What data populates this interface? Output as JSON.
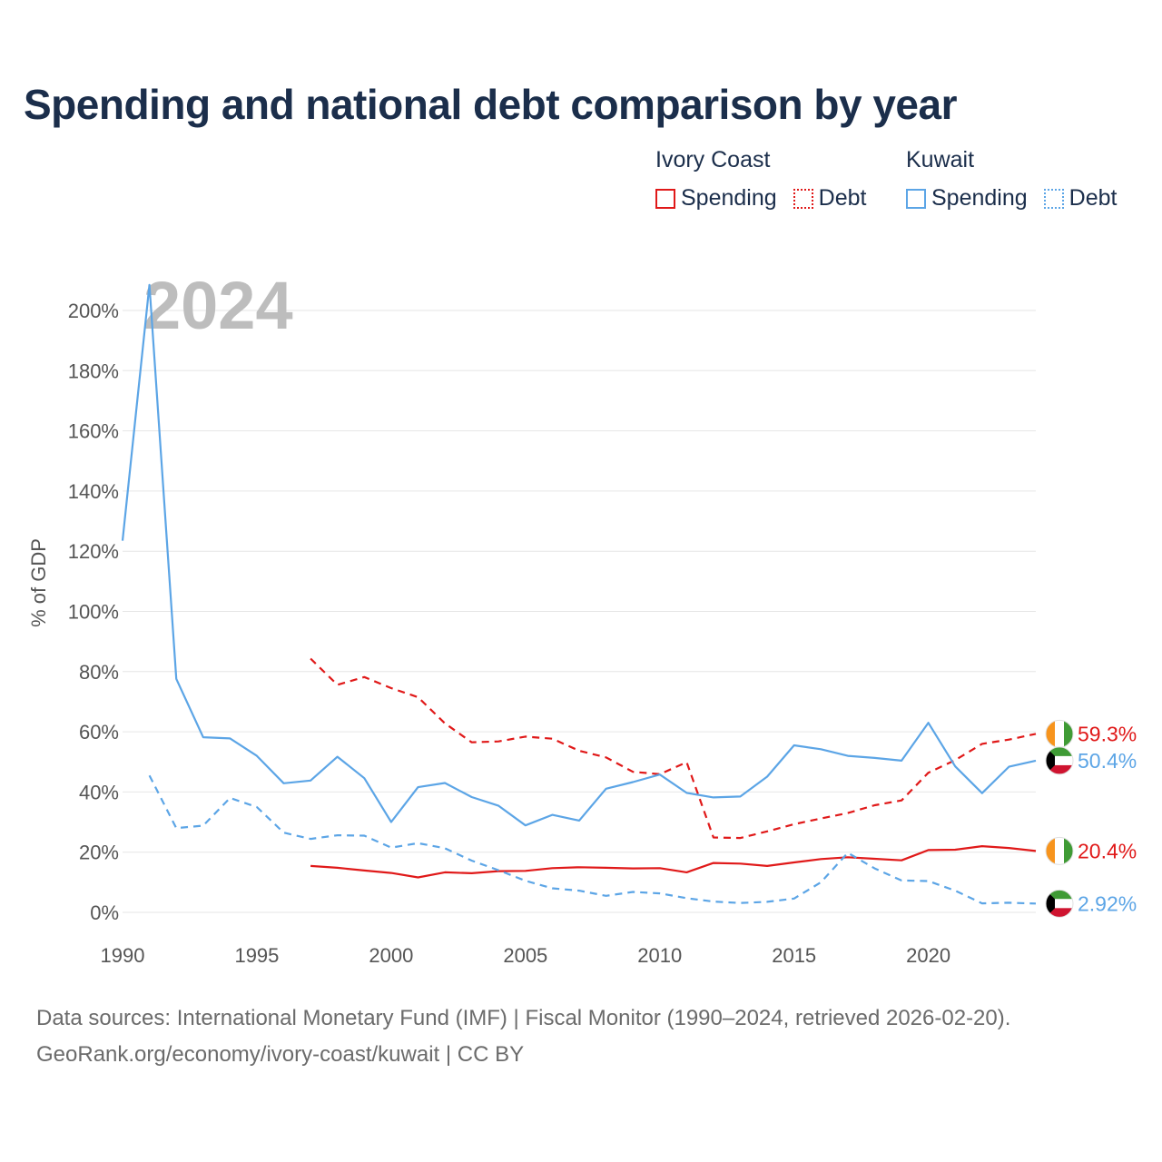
{
  "title": "Spending and national debt comparison by year",
  "legend": {
    "groups": [
      {
        "country": "Ivory Coast",
        "color": "#e01919",
        "items": [
          {
            "label": "Spending",
            "style": "solid"
          },
          {
            "label": "Debt",
            "style": "dotted"
          }
        ]
      },
      {
        "country": "Kuwait",
        "color": "#5ca5e6",
        "items": [
          {
            "label": "Spending",
            "style": "solid"
          },
          {
            "label": "Debt",
            "style": "dotted"
          }
        ]
      }
    ]
  },
  "year_label": "2024",
  "chart_data": {
    "type": "line",
    "title": "Spending and national debt comparison by year",
    "xlabel": "",
    "ylabel": "% of GDP",
    "xlim": [
      1990,
      2024
    ],
    "ylim": [
      0,
      200
    ],
    "x_ticks": [
      1990,
      1995,
      2000,
      2005,
      2010,
      2015,
      2020
    ],
    "y_ticks": [
      0,
      20,
      40,
      60,
      80,
      100,
      120,
      140,
      160,
      180,
      200
    ],
    "y_tick_suffix": "%",
    "grid": true,
    "series": [
      {
        "name": "Ivory Coast Spending",
        "country": "Ivory Coast",
        "color": "#e01919",
        "dash": false,
        "end_label": "20.4%",
        "x": [
          1997,
          1998,
          1999,
          2000,
          2001,
          2002,
          2003,
          2004,
          2005,
          2006,
          2007,
          2008,
          2009,
          2010,
          2011,
          2012,
          2013,
          2014,
          2015,
          2016,
          2017,
          2018,
          2019,
          2020,
          2021,
          2022,
          2023,
          2024
        ],
        "y": [
          15.4,
          14.8,
          13.9,
          13.1,
          11.6,
          13.3,
          13.0,
          13.7,
          13.8,
          14.7,
          15.0,
          14.8,
          14.6,
          14.7,
          13.3,
          16.4,
          16.2,
          15.4,
          16.6,
          17.7,
          18.3,
          17.8,
          17.3,
          20.7,
          20.8,
          22.0,
          21.4,
          20.4
        ]
      },
      {
        "name": "Ivory Coast Debt",
        "country": "Ivory Coast",
        "color": "#e01919",
        "dash": true,
        "end_label": "59.3%",
        "x": [
          1997,
          1998,
          1999,
          2000,
          2001,
          2002,
          2003,
          2004,
          2005,
          2006,
          2007,
          2008,
          2009,
          2010,
          2011,
          2012,
          2013,
          2014,
          2015,
          2016,
          2017,
          2018,
          2019,
          2020,
          2021,
          2022,
          2023,
          2024
        ],
        "y": [
          84.3,
          75.6,
          78.2,
          74.5,
          71.5,
          62.8,
          56.5,
          56.8,
          58.4,
          57.7,
          53.7,
          51.5,
          46.7,
          45.9,
          49.9,
          24.9,
          24.7,
          26.9,
          29.3,
          31.2,
          33.0,
          35.6,
          37.2,
          46.4,
          50.6,
          56.0,
          57.4,
          59.3
        ]
      },
      {
        "name": "Kuwait Spending",
        "country": "Kuwait",
        "color": "#5ca5e6",
        "dash": false,
        "end_label": "50.4%",
        "x": [
          1990,
          1991,
          1992,
          1993,
          1994,
          1995,
          1996,
          1997,
          1998,
          1999,
          2000,
          2001,
          2002,
          2003,
          2004,
          2005,
          2006,
          2007,
          2008,
          2009,
          2010,
          2011,
          2012,
          2013,
          2014,
          2015,
          2016,
          2017,
          2018,
          2019,
          2020,
          2021,
          2022,
          2023,
          2024
        ],
        "y": [
          123.5,
          208.5,
          77.6,
          58.2,
          57.8,
          52.0,
          42.9,
          43.8,
          51.7,
          44.6,
          30.0,
          41.6,
          43.0,
          38.3,
          35.4,
          28.9,
          32.4,
          30.5,
          41.1,
          43.3,
          45.8,
          39.7,
          38.2,
          38.5,
          45.1,
          55.5,
          54.2,
          52.0,
          51.3,
          50.4,
          63.0,
          48.5,
          39.6,
          48.4,
          50.4
        ]
      },
      {
        "name": "Kuwait Debt",
        "country": "Kuwait",
        "color": "#5ca5e6",
        "dash": true,
        "end_label": "2.92%",
        "x": [
          1991,
          1992,
          1993,
          1994,
          1995,
          1996,
          1997,
          1998,
          1999,
          2000,
          2001,
          2002,
          2003,
          2004,
          2005,
          2006,
          2007,
          2008,
          2009,
          2010,
          2011,
          2012,
          2013,
          2014,
          2015,
          2016,
          2017,
          2018,
          2019,
          2020,
          2021,
          2022,
          2023,
          2024
        ],
        "y": [
          45.5,
          28.0,
          28.8,
          38.0,
          35.0,
          26.5,
          24.4,
          25.6,
          25.5,
          21.5,
          23.0,
          21.3,
          17.2,
          14.0,
          10.5,
          8.0,
          7.2,
          5.5,
          6.8,
          6.3,
          4.7,
          3.6,
          3.1,
          3.5,
          4.6,
          10.0,
          19.8,
          14.6,
          10.6,
          10.4,
          7.2,
          3.0,
          3.2,
          2.92
        ]
      }
    ]
  },
  "footer": {
    "line1": "Data sources: International Monetary Fund (IMF) | Fiscal Monitor (1990–2024, retrieved 2026-02-20).",
    "line2": "GeoRank.org/economy/ivory-coast/kuwait | CC BY"
  }
}
